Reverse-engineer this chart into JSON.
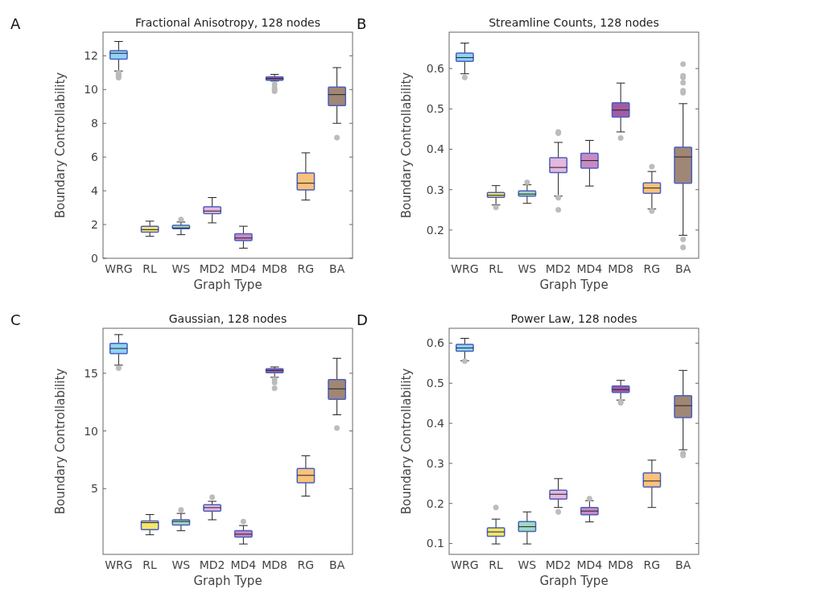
{
  "chart_data": [
    {
      "type": "box",
      "title": "Fractional Anisotropy, 128 nodes",
      "xlabel": "Graph Type",
      "ylabel": "Boundary Controllability",
      "annotations": [
        "A"
      ],
      "categories": [
        "WRG",
        "RL",
        "WS",
        "MD2",
        "MD4",
        "MD8",
        "RG",
        "BA"
      ],
      "colors": [
        "#8fd3f5",
        "#f5e66b",
        "#9fd9c0",
        "#e6b8dd",
        "#c98ac4",
        "#9b57a3",
        "#f9c27c",
        "#a08674"
      ],
      "ylim": [
        0,
        13.4
      ],
      "yticks": [
        0,
        2,
        4,
        6,
        8,
        10,
        12
      ],
      "boxes": [
        {
          "low": 11.1,
          "q1": 11.8,
          "median": 12.15,
          "q3": 12.3,
          "high": 12.85,
          "outliers": [
            10.7,
            10.8,
            10.9,
            11.0
          ]
        },
        {
          "low": 1.3,
          "q1": 1.55,
          "median": 1.7,
          "q3": 1.9,
          "high": 2.2
        },
        {
          "low": 1.4,
          "q1": 1.75,
          "median": 1.8,
          "q3": 1.95,
          "high": 2.15,
          "outliers": [
            2.3
          ]
        },
        {
          "low": 2.1,
          "q1": 2.65,
          "median": 2.8,
          "q3": 3.05,
          "high": 3.6
        },
        {
          "low": 0.6,
          "q1": 1.05,
          "median": 1.2,
          "q3": 1.45,
          "high": 1.9
        },
        {
          "low": 10.5,
          "q1": 10.55,
          "median": 10.65,
          "q3": 10.75,
          "high": 10.9,
          "outliers": [
            9.9,
            10.0,
            10.1,
            10.3
          ]
        },
        {
          "low": 3.45,
          "q1": 4.05,
          "median": 4.45,
          "q3": 5.05,
          "high": 6.25
        },
        {
          "low": 8.0,
          "q1": 9.05,
          "median": 9.7,
          "q3": 10.15,
          "high": 11.3,
          "outliers": [
            7.15
          ]
        }
      ]
    },
    {
      "type": "box",
      "title": "Streamline Counts, 128 nodes",
      "xlabel": "Graph Type",
      "ylabel": "Boundary Controllability",
      "annotations": [
        "B"
      ],
      "categories": [
        "WRG",
        "RL",
        "WS",
        "MD2",
        "MD4",
        "MD8",
        "RG",
        "BA"
      ],
      "colors": [
        "#8fd3f5",
        "#f5e66b",
        "#9fd9c0",
        "#e6b8dd",
        "#c98ac4",
        "#a35ca3",
        "#f9c27c",
        "#a08674"
      ],
      "ylim": [
        0.13,
        0.69
      ],
      "yticks": [
        0.2,
        0.3,
        0.4,
        0.5,
        0.6
      ],
      "boxes": [
        {
          "low": 0.587,
          "q1": 0.618,
          "median": 0.627,
          "q3": 0.638,
          "high": 0.663,
          "outliers": [
            0.578
          ]
        },
        {
          "low": 0.262,
          "q1": 0.281,
          "median": 0.286,
          "q3": 0.293,
          "high": 0.31,
          "outliers": [
            0.256
          ]
        },
        {
          "low": 0.266,
          "q1": 0.284,
          "median": 0.289,
          "q3": 0.297,
          "high": 0.312,
          "outliers": [
            0.318
          ]
        },
        {
          "low": 0.284,
          "q1": 0.342,
          "median": 0.355,
          "q3": 0.379,
          "high": 0.417,
          "outliers": [
            0.44,
            0.443,
            0.28,
            0.25
          ]
        },
        {
          "low": 0.309,
          "q1": 0.353,
          "median": 0.372,
          "q3": 0.39,
          "high": 0.422
        },
        {
          "low": 0.443,
          "q1": 0.48,
          "median": 0.497,
          "q3": 0.515,
          "high": 0.564,
          "outliers": [
            0.428
          ]
        },
        {
          "low": 0.252,
          "q1": 0.291,
          "median": 0.304,
          "q3": 0.317,
          "high": 0.345,
          "outliers": [
            0.357,
            0.247
          ]
        },
        {
          "low": 0.187,
          "q1": 0.316,
          "median": 0.381,
          "q3": 0.405,
          "high": 0.513,
          "outliers": [
            0.54,
            0.545,
            0.565,
            0.578,
            0.582,
            0.611,
            0.177,
            0.157
          ]
        }
      ]
    },
    {
      "type": "box",
      "title": "Gaussian, 128 nodes",
      "xlabel": "Graph Type",
      "ylabel": "Boundary Controllability",
      "annotations": [
        "C"
      ],
      "categories": [
        "WRG",
        "RL",
        "WS",
        "MD2",
        "MD4",
        "MD8",
        "RG",
        "BA"
      ],
      "colors": [
        "#8fd3f5",
        "#f5e66b",
        "#9fd9c0",
        "#e6b8dd",
        "#c98ac4",
        "#a35ca3",
        "#f9c27c",
        "#a08674"
      ],
      "ylim": [
        -0.7,
        18.9
      ],
      "yticks": [
        5,
        10,
        15
      ],
      "boxes": [
        {
          "low": 15.7,
          "q1": 16.7,
          "median": 17.15,
          "q3": 17.6,
          "high": 18.35,
          "outliers": [
            15.45
          ]
        },
        {
          "low": 1.0,
          "q1": 1.45,
          "median": 2.05,
          "q3": 2.2,
          "high": 2.75
        },
        {
          "low": 1.35,
          "q1": 1.85,
          "median": 2.15,
          "q3": 2.3,
          "high": 2.85,
          "outliers": [
            3.15
          ]
        },
        {
          "low": 2.3,
          "q1": 3.05,
          "median": 3.35,
          "q3": 3.6,
          "high": 3.9,
          "outliers": [
            4.25
          ]
        },
        {
          "low": 0.2,
          "q1": 0.8,
          "median": 1.05,
          "q3": 1.35,
          "high": 1.8,
          "outliers": [
            2.15
          ]
        },
        {
          "low": 14.65,
          "q1": 15.05,
          "median": 15.25,
          "q3": 15.4,
          "high": 15.55,
          "outliers": [
            14.45,
            14.2,
            13.7
          ]
        },
        {
          "low": 4.35,
          "q1": 5.5,
          "median": 6.15,
          "q3": 6.75,
          "high": 7.85
        },
        {
          "low": 11.4,
          "q1": 12.75,
          "median": 13.65,
          "q3": 14.45,
          "high": 16.3,
          "outliers": [
            10.25
          ]
        }
      ]
    },
    {
      "type": "box",
      "title": "Power Law, 128 nodes",
      "xlabel": "Graph Type",
      "ylabel": "Boundary Controllability",
      "annotations": [
        "D"
      ],
      "categories": [
        "WRG",
        "RL",
        "WS",
        "MD2",
        "MD4",
        "MD8",
        "RG",
        "BA"
      ],
      "colors": [
        "#8fd3f5",
        "#f5e66b",
        "#9fd9c0",
        "#e6b8dd",
        "#c98ac4",
        "#a35ca3",
        "#f9c27c",
        "#a08674"
      ],
      "ylim": [
        0.073,
        0.637
      ],
      "yticks": [
        0.1,
        0.2,
        0.3,
        0.4,
        0.5,
        0.6
      ],
      "boxes": [
        {
          "low": 0.556,
          "q1": 0.58,
          "median": 0.588,
          "q3": 0.597,
          "high": 0.612,
          "outliers": [
            0.555
          ]
        },
        {
          "low": 0.099,
          "q1": 0.118,
          "median": 0.129,
          "q3": 0.139,
          "high": 0.161,
          "outliers": [
            0.19
          ]
        },
        {
          "low": 0.099,
          "q1": 0.13,
          "median": 0.142,
          "q3": 0.155,
          "high": 0.179
        },
        {
          "low": 0.19,
          "q1": 0.211,
          "median": 0.223,
          "q3": 0.233,
          "high": 0.262,
          "outliers": [
            0.179
          ]
        },
        {
          "low": 0.154,
          "q1": 0.172,
          "median": 0.181,
          "q3": 0.19,
          "high": 0.207,
          "outliers": [
            0.212
          ]
        },
        {
          "low": 0.458,
          "q1": 0.477,
          "median": 0.484,
          "q3": 0.493,
          "high": 0.507,
          "outliers": [
            0.454,
            0.451
          ]
        },
        {
          "low": 0.19,
          "q1": 0.241,
          "median": 0.256,
          "q3": 0.276,
          "high": 0.308
        },
        {
          "low": 0.334,
          "q1": 0.414,
          "median": 0.444,
          "q3": 0.469,
          "high": 0.532,
          "outliers": [
            0.325,
            0.32
          ]
        }
      ]
    }
  ]
}
